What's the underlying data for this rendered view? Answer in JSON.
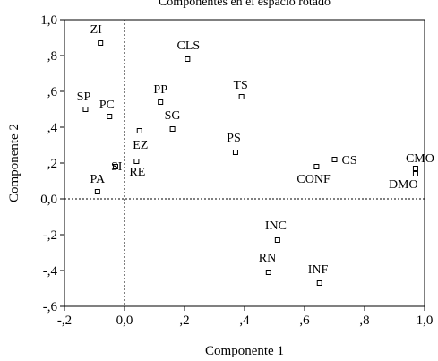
{
  "chart_data": {
    "type": "scatter",
    "title": "Componentes en el espacio rotado",
    "xlabel": "Componente 1",
    "ylabel": "Componente 2",
    "xlim": [
      -0.2,
      1.0
    ],
    "ylim": [
      -0.6,
      1.0
    ],
    "xticks": [
      "-,2",
      "0,0",
      ",2",
      ",4",
      ",6",
      ",8",
      "1,0"
    ],
    "xtick_values": [
      -0.2,
      0.0,
      0.2,
      0.4,
      0.6,
      0.8,
      1.0
    ],
    "yticks": [
      "1,0",
      ",8",
      ",6",
      ",4",
      ",2",
      "0,0",
      "-,2",
      "-,4",
      "-,6"
    ],
    "ytick_values": [
      1.0,
      0.8,
      0.6,
      0.4,
      0.2,
      0.0,
      -0.2,
      -0.4,
      -0.6
    ],
    "reference_lines": {
      "x": 0.0,
      "y": 0.0,
      "style": "dotted"
    },
    "marker": "hollow-square",
    "points": [
      {
        "label": "ZI",
        "x": -0.08,
        "y": 0.87
      },
      {
        "label": "CLS",
        "x": 0.21,
        "y": 0.78
      },
      {
        "label": "SP",
        "x": -0.13,
        "y": 0.5
      },
      {
        "label": "PC",
        "x": -0.05,
        "y": 0.46
      },
      {
        "label": "PP",
        "x": 0.12,
        "y": 0.54
      },
      {
        "label": "TS",
        "x": 0.39,
        "y": 0.57
      },
      {
        "label": "SG",
        "x": 0.16,
        "y": 0.39
      },
      {
        "label": "EZ",
        "x": 0.05,
        "y": 0.38
      },
      {
        "label": "PS",
        "x": 0.37,
        "y": 0.26
      },
      {
        "label": "SI",
        "x": -0.03,
        "y": 0.18
      },
      {
        "label": "RE",
        "x": 0.04,
        "y": 0.21
      },
      {
        "label": "PA",
        "x": -0.09,
        "y": 0.04
      },
      {
        "label": "CS",
        "x": 0.7,
        "y": 0.22
      },
      {
        "label": "CONF",
        "x": 0.64,
        "y": 0.18
      },
      {
        "label": "CMO",
        "x": 0.97,
        "y": 0.17
      },
      {
        "label": "DMO",
        "x": 0.97,
        "y": 0.14
      },
      {
        "label": "INC",
        "x": 0.51,
        "y": -0.23
      },
      {
        "label": "RN",
        "x": 0.48,
        "y": -0.41
      },
      {
        "label": "INF",
        "x": 0.65,
        "y": -0.47
      }
    ]
  }
}
